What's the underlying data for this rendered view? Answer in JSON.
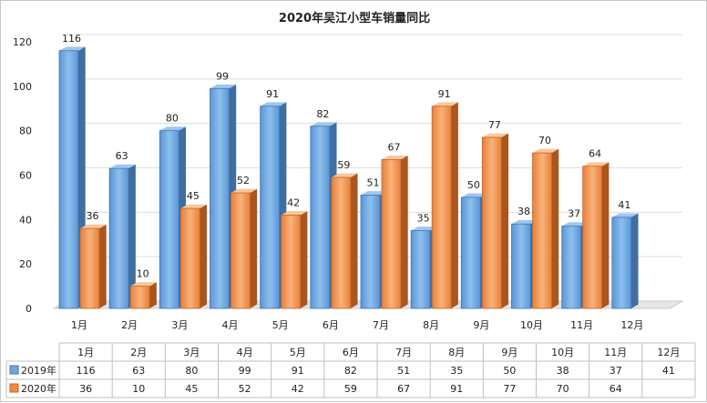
{
  "chart_data": {
    "type": "bar",
    "title": "2020年吴江小型车销量同比",
    "categories": [
      "1月",
      "2月",
      "3月",
      "4月",
      "5月",
      "6月",
      "7月",
      "8月",
      "9月",
      "10月",
      "11月",
      "12月"
    ],
    "series": [
      {
        "name": "2019年",
        "values": [
          116,
          63,
          80,
          99,
          91,
          82,
          51,
          35,
          50,
          38,
          37,
          41
        ],
        "color": "#6fa8dc"
      },
      {
        "name": "2020年",
        "values": [
          36,
          10,
          45,
          52,
          42,
          59,
          67,
          91,
          77,
          70,
          64,
          null
        ],
        "color": "#f4a460"
      }
    ],
    "ylim": [
      0,
      120
    ],
    "yticks": [
      0,
      20,
      40,
      60,
      80,
      100,
      120
    ],
    "grid": true,
    "data_table": true
  }
}
